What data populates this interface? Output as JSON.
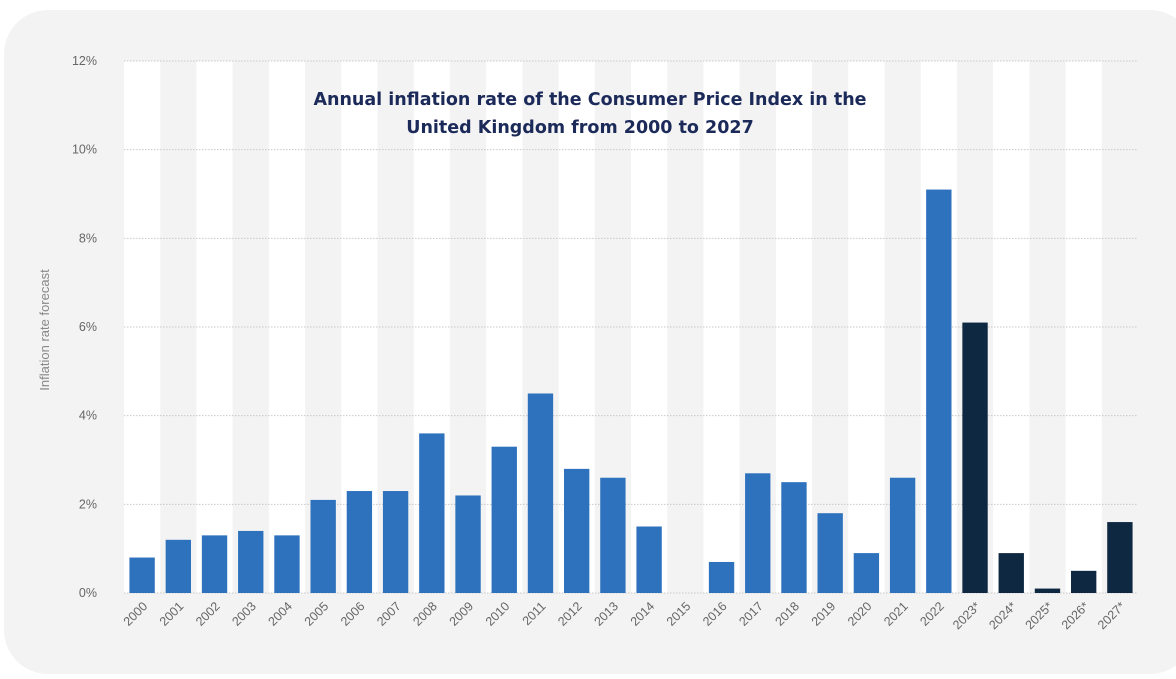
{
  "chart_data": {
    "type": "bar",
    "title": "Annual inflation rate of the Consumer Price Index in the United Kingdom from 2000 to 2027",
    "title_lines": [
      "Annual inflation rate of the Consumer Price Index in the",
      "United Kingdom from 2000 to 2027"
    ],
    "xlabel": "",
    "ylabel": "Inflation rate forecast",
    "ylim": [
      0,
      12
    ],
    "yticks": [
      0,
      2,
      4,
      6,
      8,
      10,
      12
    ],
    "ytick_labels": [
      "0%",
      "2%",
      "4%",
      "6%",
      "8%",
      "10%",
      "12%"
    ],
    "grid": true,
    "categories": [
      "2000",
      "2001",
      "2002",
      "2003",
      "2004",
      "2005",
      "2006",
      "2007",
      "2008",
      "2009",
      "2010",
      "2011",
      "2012",
      "2013",
      "2014",
      "2015",
      "2016",
      "2017",
      "2018",
      "2019",
      "2020",
      "2021",
      "2022",
      "2023*",
      "2024*",
      "2025*",
      "2026*",
      "2027*"
    ],
    "values": [
      0.8,
      1.2,
      1.3,
      1.4,
      1.3,
      2.1,
      2.3,
      2.3,
      3.6,
      2.2,
      3.3,
      4.5,
      2.8,
      2.6,
      1.5,
      0.0,
      0.7,
      2.7,
      2.5,
      1.8,
      0.9,
      2.6,
      9.1,
      6.1,
      0.9,
      0.1,
      0.5,
      1.6
    ],
    "colors": {
      "actual": "#2e72bd",
      "forecast": "#0e2841",
      "stripe": "#ffffff",
      "grid": "#c9c9c9"
    },
    "forecast_from_index": 23
  }
}
